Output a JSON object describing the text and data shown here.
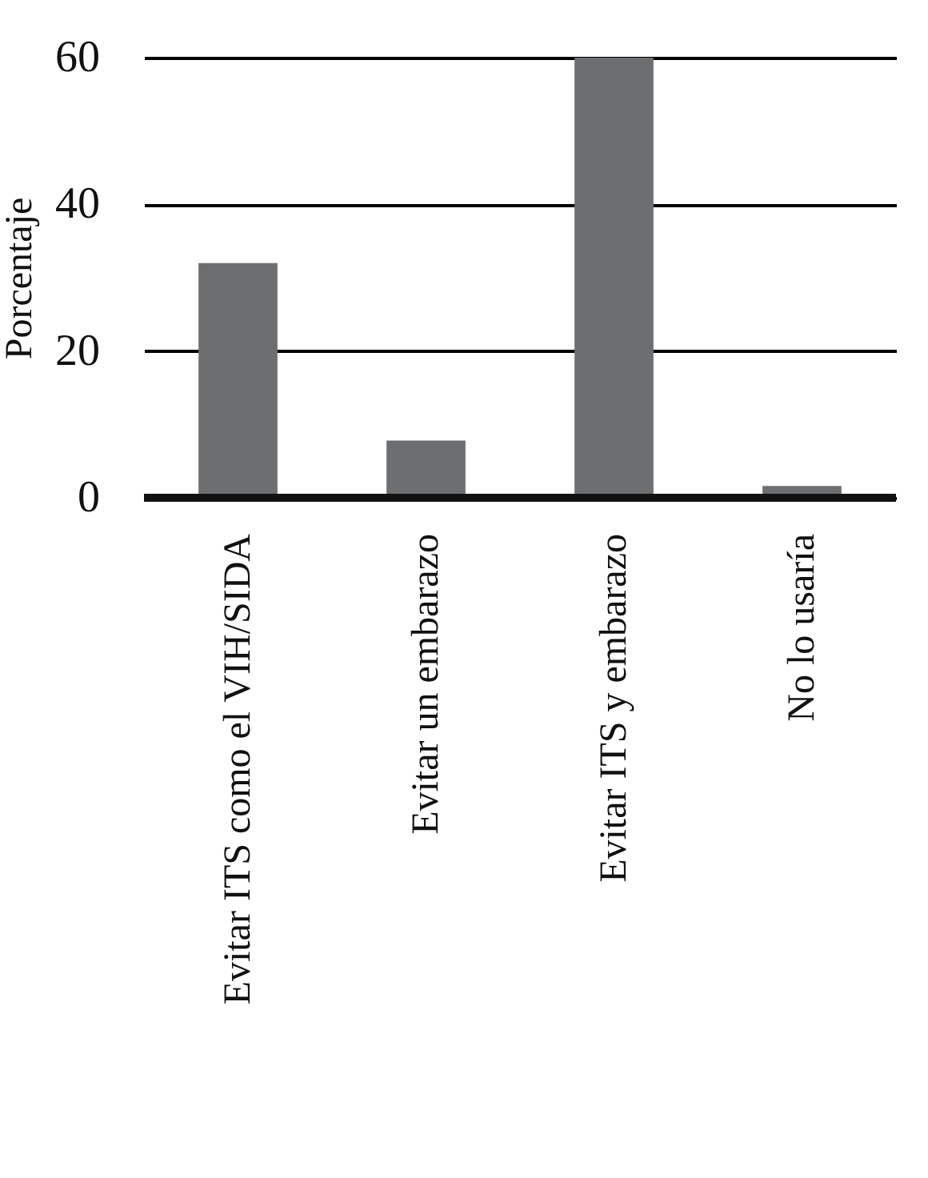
{
  "chart_data": {
    "type": "bar",
    "ylabel": "Porcentaje",
    "categories": [
      "Evitar ITS como el VIH/SIDA",
      "Evitar un embarazo",
      "Evitar ITS y embarazo",
      "No lo usaría"
    ],
    "values": [
      32,
      7.8,
      60,
      1.6
    ],
    "color": "#6d6e70",
    "ylim": [
      0,
      60
    ],
    "yticks": [
      0,
      20,
      40,
      60
    ],
    "grid": "y"
  }
}
